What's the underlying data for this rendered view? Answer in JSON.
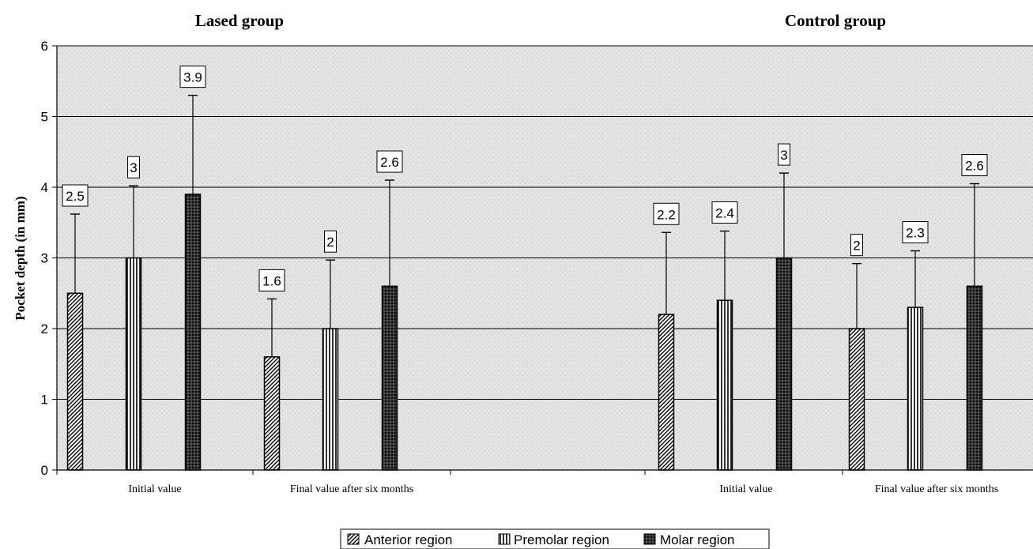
{
  "chart_data": {
    "type": "bar",
    "ylabel": "Pocket depth (in mm)",
    "ylim": [
      0,
      6
    ],
    "yticks": [
      0,
      1,
      2,
      3,
      4,
      5,
      6
    ],
    "grid": true,
    "legend_position": "bottom-center",
    "groups": [
      {
        "title": "Lased group",
        "categories": [
          "Initial value",
          "Final value after six months"
        ],
        "series": [
          {
            "name": "Anterior region",
            "values": [
              2.5,
              1.6
            ],
            "error_upper": [
              3.62,
              2.42
            ]
          },
          {
            "name": "Premolar region",
            "values": [
              3,
              2
            ],
            "error_upper": [
              4.02,
              2.97
            ]
          },
          {
            "name": "Molar region",
            "values": [
              3.9,
              2.6
            ],
            "error_upper": [
              5.3,
              4.1
            ]
          }
        ]
      },
      {
        "title": "Control group",
        "categories": [
          "Initial value",
          "Final value after six months"
        ],
        "series": [
          {
            "name": "Anterior region",
            "values": [
              2.2,
              2
            ],
            "error_upper": [
              3.36,
              2.92
            ]
          },
          {
            "name": "Premolar region",
            "values": [
              2.4,
              2.3
            ],
            "error_upper": [
              3.38,
              3.1
            ]
          },
          {
            "name": "Molar region",
            "values": [
              3,
              2.6
            ],
            "error_upper": [
              4.2,
              4.05
            ]
          }
        ]
      }
    ],
    "value_labels": {
      "lased": [
        [
          "2.5",
          "1.6"
        ],
        [
          "3",
          "2"
        ],
        [
          "3.9",
          "2.6"
        ]
      ],
      "control": [
        [
          "2.2",
          "2"
        ],
        [
          "2.4",
          "2.3"
        ],
        [
          "3",
          "2.6"
        ]
      ]
    }
  },
  "legend": {
    "items": [
      {
        "label": "Anterior region",
        "pattern": "diagonal-hatch"
      },
      {
        "label": "Premolar region",
        "pattern": "vertical-stripes"
      },
      {
        "label": "Molar region",
        "pattern": "crosshatch"
      }
    ]
  },
  "colors": {
    "ink": "#000000",
    "plot_background": "#e2e2e2",
    "bar_fill": "#ffffff"
  }
}
